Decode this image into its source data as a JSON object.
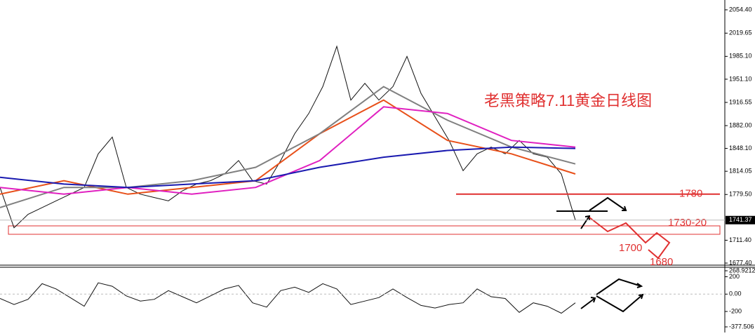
{
  "chart_data": [
    {
      "type": "line",
      "title": "老黑策略7.11黄金日线图",
      "ylim": [
        1674.3,
        2069
      ],
      "yticks": [
        {
          "value": 2054.4,
          "label": "2054.40"
        },
        2019.65,
        {
          "value": 1985.1,
          "label": "1985.10"
        },
        {
          "value": 1951.1,
          "label": "1951.10"
        },
        1916.55,
        {
          "value": 1882,
          "label": "1882.00"
        },
        {
          "value": 1848.1,
          "label": "1848.10"
        },
        1814.05,
        {
          "value": 1779.5,
          "label": "1779.50"
        },
        {
          "value": 1711.4,
          "label": "1711.40"
        },
        {
          "value": 1677.4,
          "label": "1677.40"
        }
      ],
      "series": [
        {
          "color": "#111111",
          "values": [
            1790,
            1730,
            1750,
            1760,
            1770,
            1780,
            1790,
            1840,
            1865,
            1790,
            1780,
            1775,
            1770,
            1785,
            1795,
            1800,
            1810,
            1830,
            1800,
            1795,
            1830,
            1870,
            1900,
            1940,
            2000,
            1920,
            1945,
            1920,
            1940,
            1985,
            1930,
            1895,
            1860,
            1815,
            1840,
            1850,
            1840,
            1860,
            1840,
            1835,
            1810,
            1741.37
          ]
        },
        {
          "color": "#e8501a",
          "values": [
            1780,
            1800,
            1780,
            1790,
            1800,
            1870,
            1920,
            1860,
            1840,
            1810
          ]
        },
        {
          "color": "#808080",
          "values": [
            1760,
            1790,
            1790,
            1800,
            1820,
            1870,
            1940,
            1890,
            1850,
            1825
          ]
        },
        {
          "color": "#e020c0",
          "values": [
            1790,
            1780,
            1790,
            1780,
            1790,
            1830,
            1910,
            1900,
            1860,
            1850
          ]
        },
        {
          "color": "#1a1ab0",
          "values": [
            1805,
            1795,
            1790,
            1795,
            1800,
            1820,
            1835,
            1845,
            1850,
            1848
          ]
        }
      ],
      "levels": [
        1780
      ],
      "annotations": [
        "1730-20",
        "1700",
        "1680"
      ]
    },
    {
      "type": "line",
      "ylim": [
        -377.506,
        268.9212
      ],
      "yticks": [
        268.9212,
        200,
        {
          "value": 0,
          "label": "0.00"
        },
        -200,
        -377.506
      ],
      "series": [
        {
          "color": "#111111",
          "values": [
            -50,
            -120,
            -60,
            120,
            60,
            -40,
            -140,
            130,
            90,
            -20,
            -80,
            -60,
            40,
            -30,
            -100,
            -20,
            60,
            100,
            -100,
            -150,
            40,
            80,
            20,
            120,
            60,
            -120,
            -80,
            -40,
            60,
            -40,
            -130,
            -160,
            -120,
            -100,
            60,
            -30,
            -50,
            -210,
            -100,
            -140,
            -220,
            -100
          ]
        }
      ]
    }
  ]
}
